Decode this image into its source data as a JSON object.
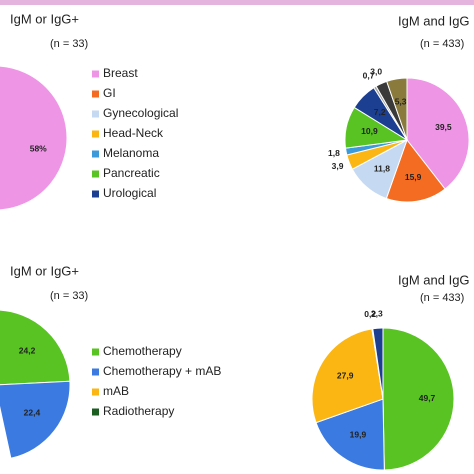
{
  "chart_data": [
    {
      "type": "pie",
      "title": "IgM or IgG+",
      "subtitle": "(n = 33)",
      "categories": [
        "Breast",
        "GI",
        "Gynecological",
        "Head-Neck",
        "Melanoma",
        "Pancreatic",
        "Urological"
      ],
      "colors": [
        "#ee95e6",
        "#f36c21",
        "#c5daf2",
        "#fbb614",
        "#3b9ad9",
        "#58c322",
        "#1d3f91"
      ],
      "values": [
        58,
        null,
        null,
        null,
        null,
        null,
        null
      ],
      "value_labels": [
        "58%",
        null,
        null,
        null,
        null,
        null,
        null
      ]
    },
    {
      "type": "pie",
      "title": "IgM and IgG",
      "subtitle": "(n = 433)",
      "colors": [
        "#ee95e6",
        "#f36c21",
        "#c5daf2",
        "#fbb614",
        "#3b9ad9",
        "#58c322",
        "#1d3f91",
        "#a6a6a6",
        "#3a3a3a",
        "#8a7a3c"
      ],
      "values": [
        39.5,
        15.9,
        11.8,
        3.9,
        1.8,
        10.9,
        7.2,
        0.7,
        3.0,
        5.3
      ],
      "value_labels": [
        "39,5",
        "15,9",
        "11,8",
        "3,9",
        "1,8",
        "10,9",
        "7,2",
        "0,7",
        "3,0",
        "5,3"
      ]
    },
    {
      "type": "pie",
      "title": "IgM or IgG+",
      "subtitle": "(n = 33)",
      "categories": [
        "Chemotherapy",
        "Chemotherapy + mAB",
        "mAB",
        "Radiotherapy"
      ],
      "colors": [
        "#58c322",
        "#3b7ae0",
        "#fbb614",
        "#1b5e20"
      ],
      "values": [
        24.2,
        22.4,
        null,
        null
      ],
      "value_labels": [
        "24,2",
        "22,4",
        null,
        null
      ]
    },
    {
      "type": "pie",
      "title": "IgM and IgG",
      "subtitle": "(n = 433)",
      "colors": [
        "#58c322",
        "#3b7ae0",
        "#fbb614",
        "#1b5e20",
        "#1d3f91"
      ],
      "values": [
        49.7,
        19.9,
        27.9,
        0.2,
        2.3
      ],
      "value_labels": [
        "49,7",
        "19,9",
        "27,9",
        "0,2",
        "2,3"
      ]
    }
  ]
}
